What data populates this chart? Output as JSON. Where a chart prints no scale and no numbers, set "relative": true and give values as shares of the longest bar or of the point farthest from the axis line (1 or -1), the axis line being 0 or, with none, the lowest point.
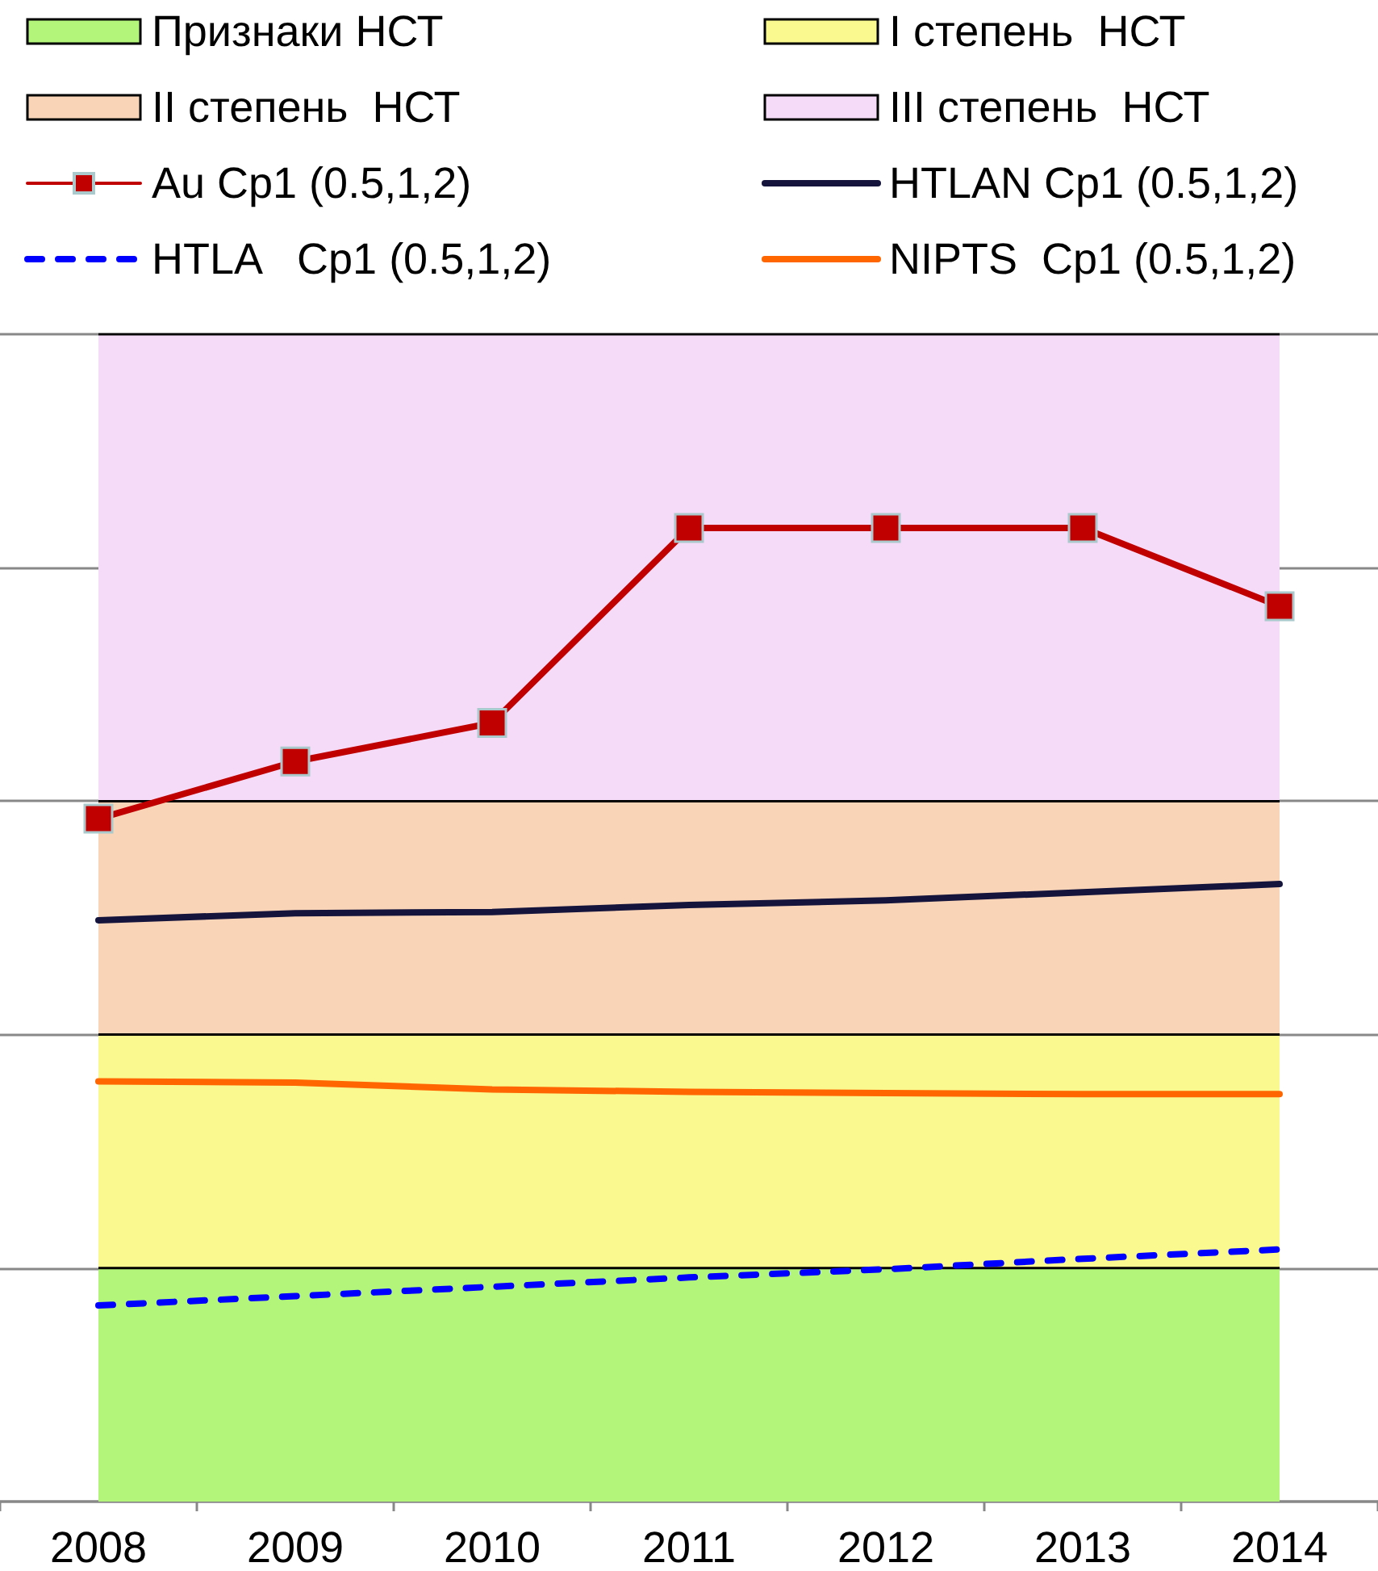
{
  "chart_data": {
    "type": "line",
    "relative": true,
    "grid": "y",
    "legend": "top",
    "categories": [
      "2008",
      "2009",
      "2010",
      "2011",
      "2012",
      "2013",
      "2014"
    ],
    "series": [
      {
        "name": "Признаки НСТ",
        "type": "area",
        "color": "#b3f57a",
        "values": [
          0.2,
          0.2,
          0.2,
          0.2,
          0.2,
          0.2,
          0.2
        ]
      },
      {
        "name": "I степень  НСТ",
        "type": "area",
        "color": "#f9f98f",
        "values": [
          0.4,
          0.4,
          0.4,
          0.4,
          0.4,
          0.4,
          0.4
        ]
      },
      {
        "name": "II степень  НСТ",
        "type": "area",
        "color": "#f9d4b7",
        "values": [
          0.6,
          0.6,
          0.6,
          0.6,
          0.6,
          0.6,
          0.6
        ]
      },
      {
        "name": "III степень  НСТ",
        "type": "area",
        "color": "#f5dbf7",
        "values": [
          1,
          1,
          1,
          1,
          1,
          1,
          1
        ]
      },
      {
        "name": "Au Cp1 (0.5,1,2)",
        "color": "#c00000",
        "marker": "square",
        "values": [
          0.585,
          0.634,
          0.667,
          0.834,
          0.834,
          0.834,
          0.767
        ]
      },
      {
        "name": "HTLAN Cp1 (0.5,1,2)",
        "color": "#14143c",
        "values": [
          0.498,
          0.504,
          0.505,
          0.511,
          0.515,
          0.522,
          0.529
        ]
      },
      {
        "name": "HTLA   Cp1 (0.5,1,2)",
        "color": "#0000ff",
        "line_style": "dashed",
        "values": [
          0.168,
          0.176,
          0.184,
          0.192,
          0.199,
          0.208,
          0.216
        ]
      },
      {
        "name": "NIPTS  Cp1 (0.5,1,2)",
        "color": "#ff6600",
        "values": [
          0.36,
          0.359,
          0.353,
          0.351,
          0.35,
          0.349,
          0.349
        ]
      }
    ]
  }
}
